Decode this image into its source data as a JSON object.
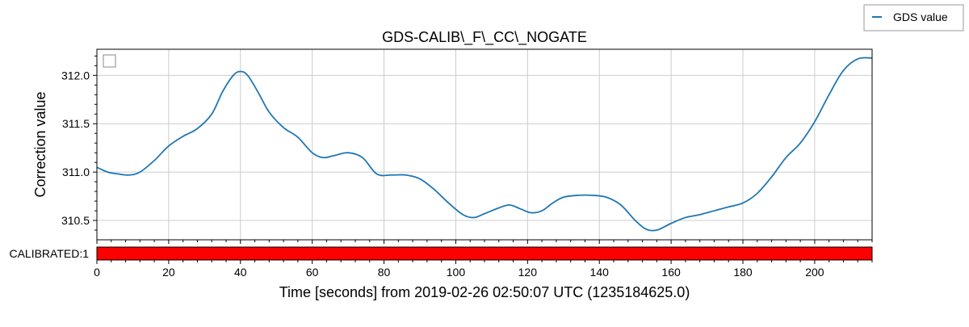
{
  "chart_data": {
    "type": "line",
    "title": "GDS-CALIB\\_F\\_CC\\_NOGATE",
    "xlabel": "Time [seconds] from 2019-02-26 02:50:07 UTC (1235184625.0)",
    "ylabel": "Correction value",
    "xlim": [
      0,
      216
    ],
    "ylim": [
      310.3,
      312.27
    ],
    "xticks": [
      0,
      20,
      40,
      60,
      80,
      100,
      120,
      140,
      160,
      180,
      200
    ],
    "yticks": [
      310.5,
      311.0,
      311.5,
      312.0
    ],
    "xtick_labels": [
      "0",
      "20",
      "40",
      "60",
      "80",
      "100",
      "120",
      "140",
      "160",
      "180",
      "200"
    ],
    "ytick_labels": [
      "310.5",
      "311.0",
      "311.5",
      "312.0"
    ],
    "grid": true,
    "legend_outside": {
      "label": "GDS value",
      "color": "#1f77b4",
      "placement": "top-right"
    },
    "legend_inside": {
      "placement": "top-left",
      "empty": true
    },
    "series": [
      {
        "name": "GDS value",
        "color": "#1f77b4",
        "x": [
          0,
          3,
          6,
          9,
          12,
          16,
          20,
          24,
          28,
          32,
          35,
          38,
          40,
          42,
          45,
          48,
          52,
          56,
          60,
          63,
          66,
          70,
          74,
          78,
          82,
          86,
          90,
          94,
          98,
          102,
          105,
          108,
          112,
          115,
          118,
          121,
          124,
          127,
          130,
          134,
          138,
          142,
          146,
          150,
          153,
          156,
          160,
          164,
          168,
          172,
          176,
          180,
          184,
          188,
          192,
          196,
          200,
          204,
          208,
          212,
          216
        ],
        "y": [
          311.05,
          311.0,
          310.98,
          310.97,
          311.0,
          311.12,
          311.27,
          311.37,
          311.45,
          311.6,
          311.83,
          312.0,
          312.04,
          312.0,
          311.82,
          311.62,
          311.46,
          311.36,
          311.2,
          311.15,
          311.17,
          311.2,
          311.15,
          310.98,
          310.97,
          310.97,
          310.93,
          310.82,
          310.68,
          310.56,
          310.53,
          310.57,
          310.63,
          310.66,
          310.62,
          310.58,
          310.6,
          310.68,
          310.74,
          310.76,
          310.76,
          310.74,
          310.66,
          310.5,
          310.41,
          310.4,
          310.47,
          310.53,
          310.56,
          310.6,
          310.64,
          310.68,
          310.78,
          310.95,
          311.15,
          311.3,
          311.52,
          311.8,
          312.05,
          312.17,
          312.18
        ]
      }
    ],
    "segments": [
      {
        "label": "CALIBRATED:1",
        "color": "#ff0000",
        "x_start": 0,
        "x_end": 216
      }
    ]
  }
}
